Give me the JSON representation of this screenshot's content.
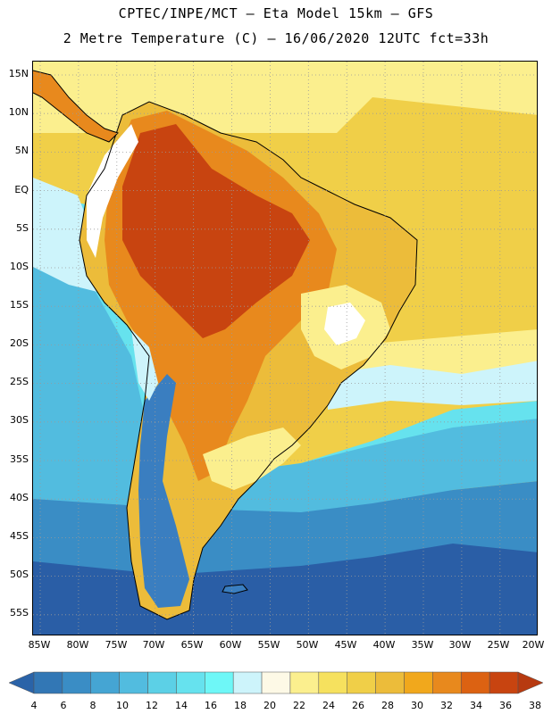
{
  "header": {
    "line1": "CPTEC/INPE/MCT –   Eta Model 15km – GFS",
    "line2": "2 Metre Temperature (C) – 16/06/2020 12UTC fct=33h"
  },
  "axes": {
    "lat_labels": [
      "15N",
      "10N",
      "5N",
      "EQ",
      "5S",
      "10S",
      "15S",
      "20S",
      "25S",
      "30S",
      "35S",
      "40S",
      "45S",
      "50S",
      "55S"
    ],
    "lon_labels": [
      "85W",
      "80W",
      "75W",
      "70W",
      "65W",
      "60W",
      "55W",
      "50W",
      "45W",
      "40W",
      "35W",
      "30W",
      "25W",
      "20W"
    ]
  },
  "colorbar": {
    "labels": [
      "4",
      "6",
      "8",
      "10",
      "12",
      "14",
      "16",
      "18",
      "20",
      "22",
      "24",
      "26",
      "28",
      "30",
      "32",
      "34",
      "36",
      "38"
    ],
    "colors": [
      "#2a63a8",
      "#3277b5",
      "#3a8dc5",
      "#45a5d3",
      "#52bcdf",
      "#5cd0e6",
      "#66e2ee",
      "#6ef7f7",
      "#cdf4fb",
      "#fdf9e6",
      "#fbef8e",
      "#f6e15e",
      "#f0cf48",
      "#ecbc3a",
      "#f1a81c",
      "#e8891d",
      "#dc6212",
      "#c84410",
      "#b73a10"
    ]
  },
  "map_colors": {
    "ocean_far_south": "#2a5ea6",
    "ocean_south": "#3a8dc5",
    "ocean_mid": "#52bcdf",
    "ocean_cool": "#66e2ee",
    "ocean_mild": "#cdf4fb",
    "ocean_warm": "#fbef8e",
    "ocean_tropic": "#f0cf48",
    "land_hot": "#c84410",
    "land_warm": "#e8891d",
    "land_mild": "#ecbc3a",
    "land_cool": "#fbef8e",
    "andes_cold": "#3a7ec0",
    "highland": "#ffffff",
    "coast_line": "#000000",
    "grid_line": "#9a9a9a"
  }
}
